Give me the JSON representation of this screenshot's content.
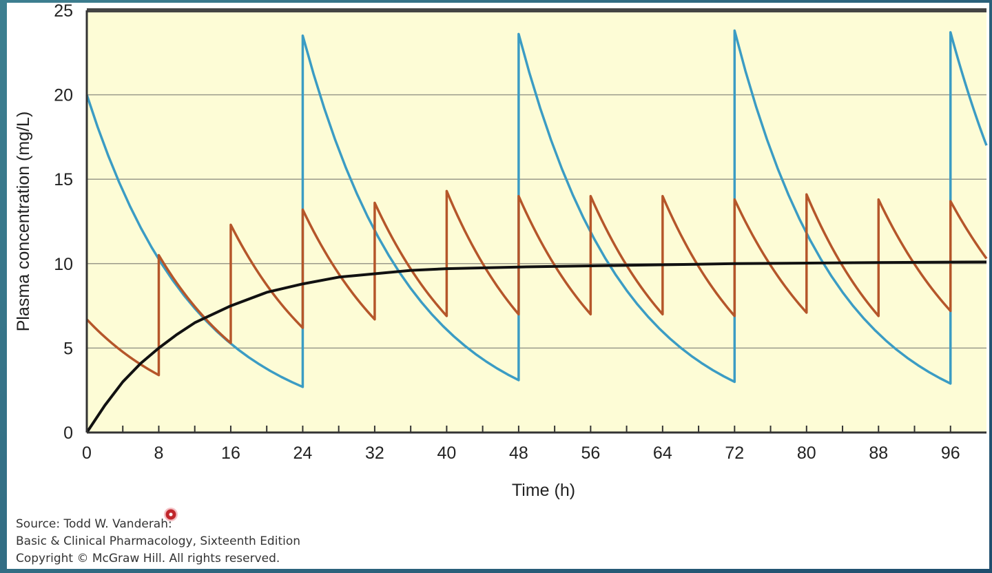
{
  "chart_data": {
    "type": "line",
    "title": "",
    "xlabel": "Time (h)",
    "ylabel": "Plasma concentration (mg/L)",
    "xlim": [
      0,
      100
    ],
    "ylim": [
      0,
      25
    ],
    "xticks": [
      0,
      8,
      16,
      24,
      32,
      40,
      48,
      56,
      64,
      72,
      80,
      88,
      96
    ],
    "yticks": [
      0,
      5,
      10,
      15,
      20,
      25
    ],
    "grid": "horizontal",
    "background": "#fdfcd6",
    "series": [
      {
        "color": "#3b9cc4",
        "points": [
          [
            0,
            20
          ],
          [
            24,
            2.7
          ],
          [
            24,
            23.5
          ],
          [
            48,
            3.1
          ],
          [
            48,
            23.6
          ],
          [
            72,
            3.0
          ],
          [
            72,
            23.8
          ],
          [
            96,
            2.9
          ],
          [
            96,
            23.7
          ],
          [
            100,
            17
          ]
        ]
      },
      {
        "color": "#b5562a",
        "points": [
          [
            0,
            6.7
          ],
          [
            8,
            3.4
          ],
          [
            8,
            10.5
          ],
          [
            16,
            5.3
          ],
          [
            16,
            12.3
          ],
          [
            24,
            6.2
          ],
          [
            24,
            13.2
          ],
          [
            32,
            6.7
          ],
          [
            32,
            13.6
          ],
          [
            40,
            6.9
          ],
          [
            40,
            14.3
          ],
          [
            48,
            7.0
          ],
          [
            48,
            14.0
          ],
          [
            56,
            7.0
          ],
          [
            56,
            14.0
          ],
          [
            64,
            7.0
          ],
          [
            64,
            14.0
          ],
          [
            72,
            6.9
          ],
          [
            72,
            13.8
          ],
          [
            80,
            7.1
          ],
          [
            80,
            14.1
          ],
          [
            88,
            6.9
          ],
          [
            88,
            13.8
          ],
          [
            96,
            7.2
          ],
          [
            96,
            13.7
          ],
          [
            100,
            10.3
          ]
        ]
      },
      {
        "color": "#111111",
        "points": [
          [
            0,
            0
          ],
          [
            2,
            1.6
          ],
          [
            4,
            3.0
          ],
          [
            6,
            4.1
          ],
          [
            8,
            5.0
          ],
          [
            10,
            5.8
          ],
          [
            12,
            6.5
          ],
          [
            14,
            7.0
          ],
          [
            16,
            7.5
          ],
          [
            20,
            8.3
          ],
          [
            24,
            8.8
          ],
          [
            28,
            9.2
          ],
          [
            32,
            9.4
          ],
          [
            36,
            9.6
          ],
          [
            40,
            9.7
          ],
          [
            48,
            9.8
          ],
          [
            60,
            9.9
          ],
          [
            72,
            10.0
          ],
          [
            84,
            10.05
          ],
          [
            100,
            10.1
          ]
        ]
      }
    ]
  },
  "source": {
    "line1": "Source: Todd W. Vanderah:",
    "line2": "Basic & Clinical Pharmacology, Sixteenth Edition",
    "line3": "Copyright © McGraw Hill. All rights reserved."
  }
}
